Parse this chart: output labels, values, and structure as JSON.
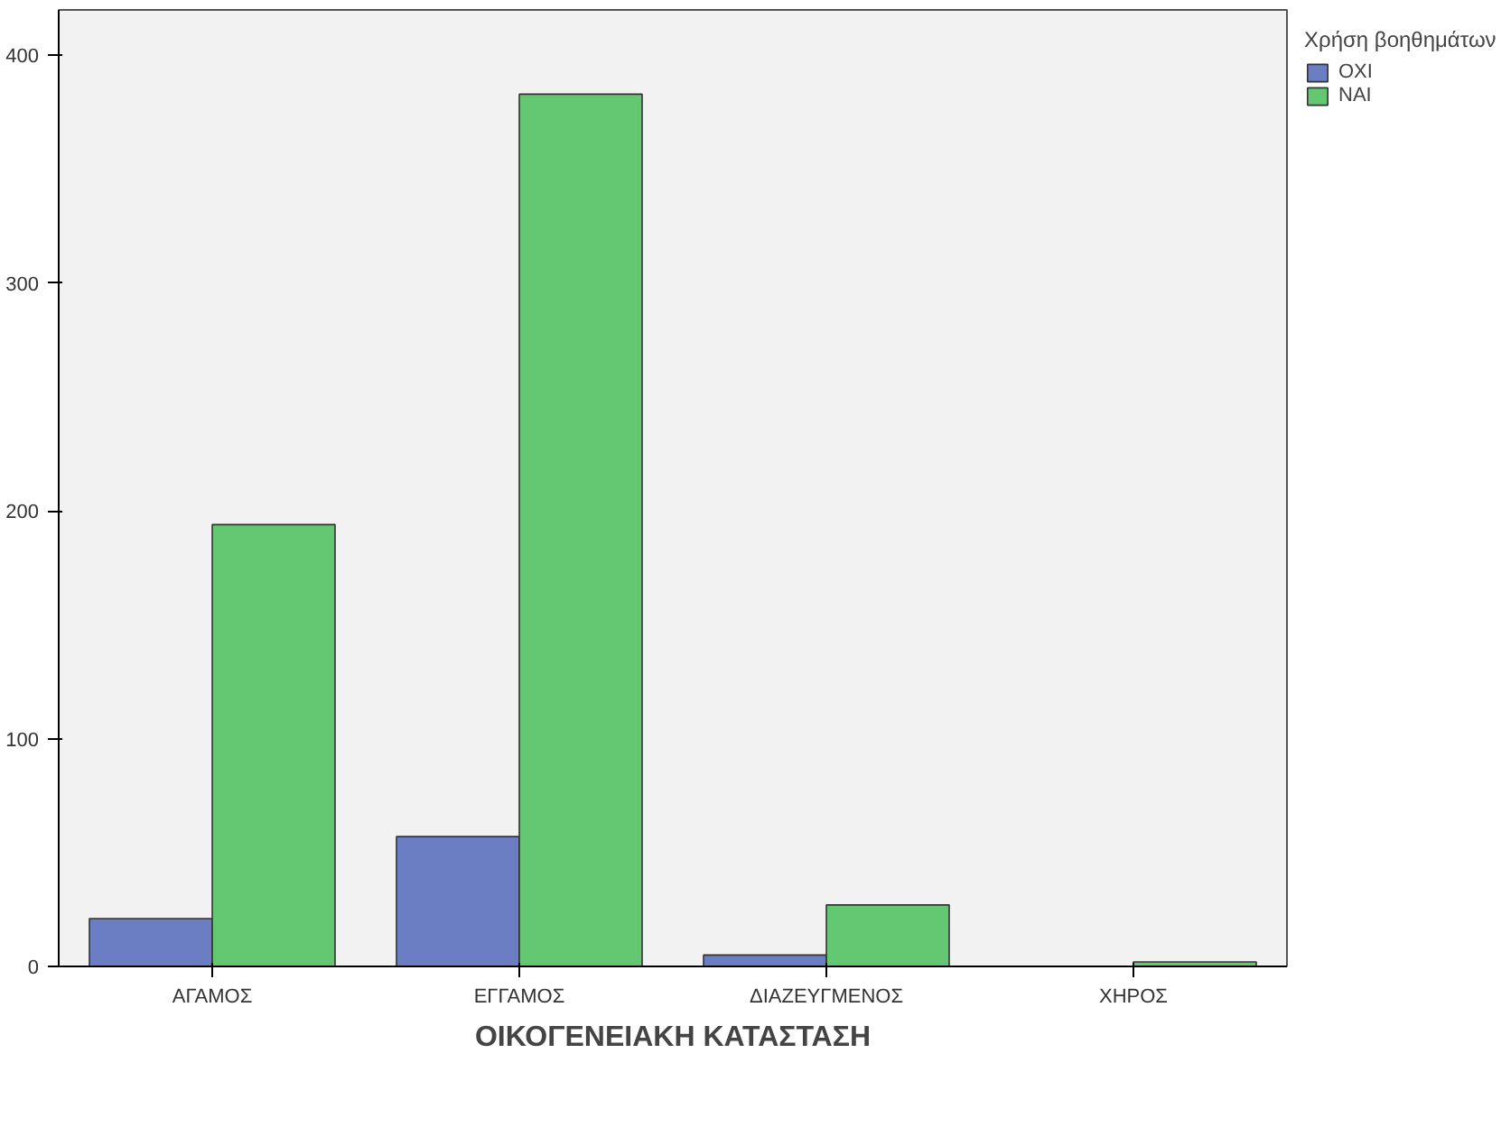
{
  "chart_data": {
    "type": "bar",
    "xlabel": "ΟΙΚΟΓΕΝΕΙΑΚΗ ΚΑΤΑΣΤΑΣΗ",
    "legend_title": "Χρήση βοηθημάτων",
    "categories": [
      "ΑΓΑΜΟΣ",
      "ΕΓΓΑΜΟΣ",
      "ΔΙΑΖΕΥΓΜΕΝΟΣ",
      "ΧΗΡΟΣ"
    ],
    "series": [
      {
        "name": "ΟΧΙ",
        "color": "#6b7ec4",
        "values": [
          21,
          57,
          5,
          0
        ]
      },
      {
        "name": "ΝΑΙ",
        "color": "#64c872",
        "values": [
          194,
          383,
          27,
          2
        ]
      }
    ],
    "ylim": [
      0,
      420
    ],
    "yticks": [
      0,
      100,
      200,
      300,
      400
    ],
    "grid": false,
    "legend": "top right"
  }
}
